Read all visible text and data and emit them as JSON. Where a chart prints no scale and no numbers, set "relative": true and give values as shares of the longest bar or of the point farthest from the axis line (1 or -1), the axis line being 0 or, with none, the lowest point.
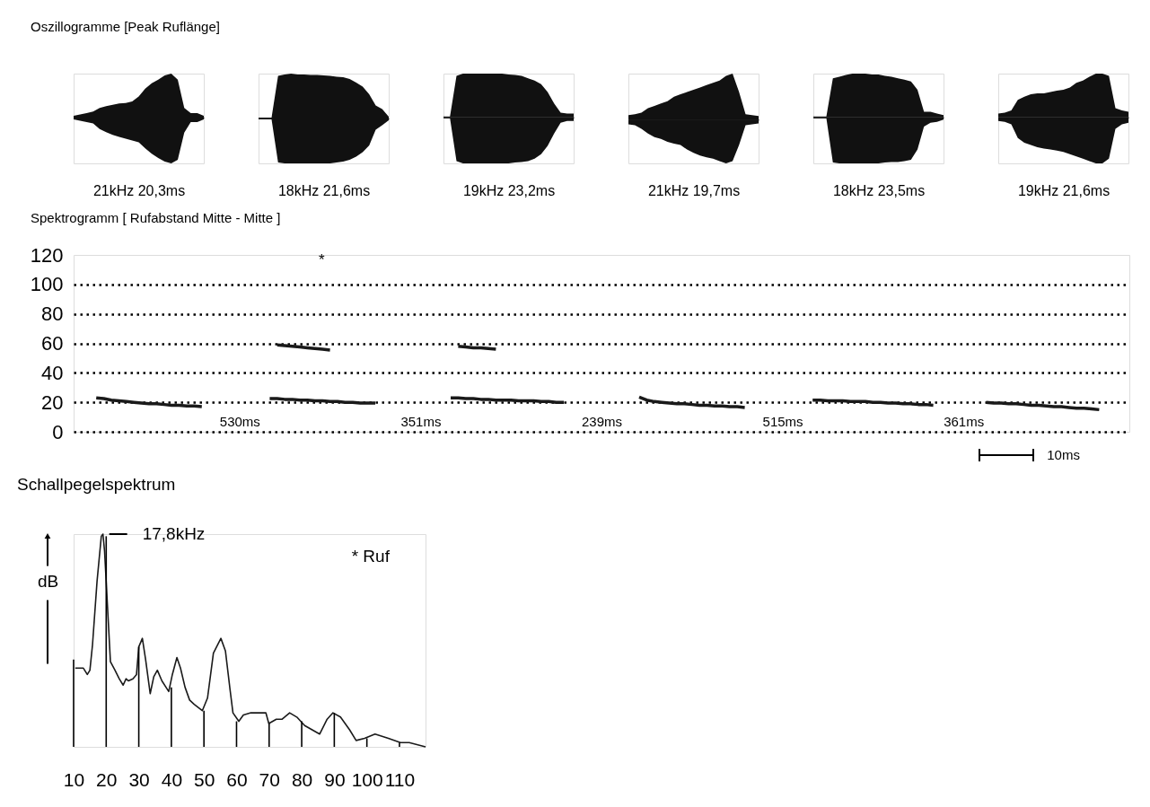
{
  "chart_data": [
    {
      "type": "area",
      "relative": true,
      "title": "Oszillogramme [Peak Ruflänge]",
      "xlabel": "21kHz 20,3ms",
      "categories": [
        null,
        null,
        null,
        null,
        null,
        null,
        null,
        null,
        null,
        null,
        null,
        null,
        null,
        null,
        null,
        null,
        null,
        null,
        null,
        null,
        null
      ],
      "series": [
        {
          "color": "#111111",
          "values": [
            0.04,
            0.07,
            0.1,
            0.13,
            0.21,
            0.25,
            0.28,
            0.31,
            0.32,
            0.35,
            0.46,
            0.63,
            0.75,
            0.83,
            0.92,
            0.96,
            0.83,
            0.21,
            0.1,
            0.1,
            0.04
          ]
        },
        {
          "color": "#111111",
          "values": [
            -0.04,
            -0.07,
            -0.1,
            -0.13,
            -0.25,
            -0.32,
            -0.38,
            -0.42,
            -0.46,
            -0.5,
            -0.54,
            -0.67,
            -0.79,
            -0.88,
            -0.96,
            -1,
            -0.92,
            -0.33,
            -0.1,
            -0.1,
            -0.04
          ]
        }
      ]
    },
    {
      "type": "area",
      "relative": true,
      "xlabel": "18kHz 21,6ms",
      "categories": [
        null,
        null,
        null,
        null,
        null,
        null,
        null,
        null,
        null,
        null,
        null,
        null,
        null,
        null,
        null,
        null,
        null,
        null,
        null,
        null,
        null
      ],
      "series": [
        {
          "color": "#111111",
          "values": [
            0.02,
            0.02,
            0.02,
            0.95,
            0.98,
            1,
            0.98,
            0.98,
            0.97,
            0.97,
            0.96,
            0.95,
            0.93,
            0.92,
            0.88,
            0.8,
            0.71,
            0.54,
            0.29,
            0.21,
            0.04
          ]
        },
        {
          "color": "#111111",
          "values": [
            -0.02,
            -0.02,
            -0.02,
            -0.98,
            -1,
            -1,
            -1,
            -1,
            -1,
            -1,
            -1,
            -1,
            -0.98,
            -0.96,
            -0.92,
            -0.85,
            -0.75,
            -0.6,
            -0.25,
            -0.15,
            -0.04
          ]
        }
      ]
    },
    {
      "type": "area",
      "relative": true,
      "xlabel": "19kHz 23,2ms",
      "categories": [
        null,
        null,
        null,
        null,
        null,
        null,
        null,
        null,
        null,
        null,
        null,
        null,
        null,
        null,
        null,
        null,
        null,
        null,
        null,
        null,
        null
      ],
      "series": [
        {
          "color": "#111111",
          "values": [
            0.02,
            0.02,
            0.9,
            0.95,
            0.95,
            0.95,
            0.95,
            0.95,
            0.95,
            0.95,
            0.93,
            0.92,
            0.9,
            0.85,
            0.8,
            0.72,
            0.55,
            0.3,
            0.1,
            0.08,
            0.08
          ]
        },
        {
          "color": "#111111",
          "values": [
            -0.02,
            -0.02,
            -0.95,
            -1,
            -1,
            -1,
            -1,
            -1,
            -1,
            -1,
            -1,
            -0.98,
            -0.97,
            -0.95,
            -0.9,
            -0.8,
            -0.62,
            -0.35,
            -0.12,
            -0.08,
            -0.08
          ]
        }
      ]
    },
    {
      "type": "area",
      "relative": true,
      "xlabel": "21kHz 19,7ms",
      "categories": [
        null,
        null,
        null,
        null,
        null,
        null,
        null,
        null,
        null,
        null,
        null,
        null,
        null,
        null,
        null,
        null,
        null,
        null,
        null,
        null,
        null
      ],
      "series": [
        {
          "color": "#111111",
          "values": [
            0.1,
            0.12,
            0.15,
            0.25,
            0.3,
            0.35,
            0.4,
            0.5,
            0.55,
            0.6,
            0.65,
            0.7,
            0.75,
            0.8,
            0.85,
            0.95,
            1,
            0.6,
            0.12,
            0.1,
            0.08
          ]
        },
        {
          "color": "#111111",
          "values": [
            -0.1,
            -0.12,
            -0.2,
            -0.3,
            -0.38,
            -0.42,
            -0.48,
            -0.52,
            -0.55,
            -0.65,
            -0.72,
            -0.78,
            -0.82,
            -0.85,
            -0.9,
            -0.95,
            -0.9,
            -0.55,
            -0.12,
            -0.1,
            -0.08
          ]
        }
      ]
    },
    {
      "type": "area",
      "relative": true,
      "xlabel": "18kHz 23,5ms",
      "categories": [
        null,
        null,
        null,
        null,
        null,
        null,
        null,
        null,
        null,
        null,
        null,
        null,
        null,
        null,
        null,
        null,
        null,
        null,
        null,
        null,
        null
      ],
      "series": [
        {
          "color": "#111111",
          "values": [
            0.02,
            0.02,
            0.02,
            0.85,
            0.88,
            0.92,
            0.95,
            0.95,
            0.95,
            0.93,
            0.93,
            0.9,
            0.88,
            0.85,
            0.82,
            0.78,
            0.6,
            0.12,
            0.12,
            0.08,
            0.05
          ]
        },
        {
          "color": "#111111",
          "values": [
            -0.02,
            -0.02,
            -0.02,
            -0.98,
            -1,
            -1,
            -1,
            -1,
            -1,
            -1,
            -1,
            -0.98,
            -0.97,
            -0.97,
            -0.95,
            -0.92,
            -0.7,
            -0.2,
            -0.12,
            -0.1,
            -0.05
          ]
        }
      ]
    },
    {
      "type": "area",
      "relative": true,
      "xlabel": "19kHz 21,6ms",
      "categories": [
        null,
        null,
        null,
        null,
        null,
        null,
        null,
        null,
        null,
        null,
        null,
        null,
        null,
        null,
        null,
        null,
        null,
        null,
        null,
        null,
        null
      ],
      "series": [
        {
          "color": "#111111",
          "values": [
            0.08,
            0.1,
            0.15,
            0.38,
            0.45,
            0.5,
            0.52,
            0.52,
            0.55,
            0.58,
            0.6,
            0.65,
            0.75,
            0.8,
            0.88,
            0.95,
            0.95,
            0.9,
            0.2,
            0.15,
            0.12
          ]
        },
        {
          "color": "#111111",
          "values": [
            -0.08,
            -0.1,
            -0.15,
            -0.45,
            -0.55,
            -0.6,
            -0.65,
            -0.68,
            -0.7,
            -0.72,
            -0.75,
            -0.8,
            -0.85,
            -0.9,
            -0.95,
            -1,
            -1,
            -0.9,
            -0.25,
            -0.15,
            -0.12
          ]
        }
      ]
    },
    {
      "type": "line",
      "title": "Spektrogramm [ Rufabstand Mitte - Mitte ]",
      "xlabel": "10ms",
      "ylim": [
        0,
        120
      ],
      "yticks": [
        0,
        20,
        40,
        60,
        80,
        100,
        120
      ],
      "grid": "y",
      "annotations": [
        "*"
      ],
      "categories": [
        null,
        null,
        null,
        null,
        null,
        null,
        null,
        null,
        null,
        null,
        null,
        null,
        null,
        null,
        null,
        null,
        null,
        null,
        null,
        null,
        null,
        null,
        "530ms",
        null,
        null,
        null,
        null,
        null,
        null,
        null,
        null,
        null,
        null,
        null,
        null,
        null,
        null,
        null,
        null,
        null,
        null,
        null,
        null,
        null,
        null,
        null,
        "351ms",
        null,
        null,
        null,
        null,
        null,
        null,
        null,
        null,
        null,
        null,
        null,
        null,
        null,
        null,
        null,
        null,
        null,
        null,
        null,
        null,
        null,
        null,
        null,
        "239ms",
        null,
        null,
        null,
        null,
        null,
        null,
        null,
        null,
        null,
        null,
        null,
        null,
        null,
        null,
        null,
        null,
        null,
        null,
        null,
        null,
        null,
        null,
        null,
        "515ms",
        null,
        null,
        null,
        null,
        null,
        null,
        null,
        null,
        null,
        null,
        null,
        null,
        null,
        null,
        null,
        null,
        null,
        null,
        null,
        null,
        null,
        null,
        null,
        "361ms",
        null,
        null,
        null,
        null,
        null,
        null,
        null,
        null,
        null,
        null,
        null,
        null,
        null,
        null,
        null,
        null,
        null,
        null,
        null,
        null,
        null,
        null
      ],
      "series": [
        {
          "color": "#1a1a1a",
          "values": [
            null,
            null,
            null,
            23,
            22.5,
            21.5,
            21,
            20.5,
            20,
            19.5,
            19,
            19,
            18.5,
            18,
            18,
            17.5,
            17.5,
            17,
            null,
            null,
            null,
            null,
            null,
            null,
            null,
            null,
            null,
            null,
            null,
            null,
            null,
            null,
            null,
            null,
            null,
            null,
            null,
            null,
            null,
            null,
            null,
            null,
            null,
            null,
            null,
            null,
            null,
            null,
            null,
            null,
            null,
            null,
            null,
            null,
            null,
            null,
            null,
            null,
            null,
            null,
            null,
            null,
            null,
            null,
            null,
            null,
            null,
            null,
            null,
            null,
            null,
            null,
            null,
            null,
            null,
            null,
            null,
            null,
            null,
            null,
            null,
            null,
            null,
            null,
            null,
            null,
            null,
            null,
            null,
            null,
            null,
            null,
            null,
            null,
            null,
            null,
            null,
            null,
            null,
            null,
            null,
            null,
            null,
            null,
            null,
            null,
            null,
            null,
            null,
            null,
            null,
            null,
            null,
            null,
            null,
            null,
            null,
            null,
            null,
            null,
            null,
            null,
            null,
            null,
            null,
            null,
            null,
            null,
            null,
            null,
            null,
            null,
            null,
            null,
            null,
            null,
            null,
            null,
            null,
            null,
            null
          ]
        },
        {
          "color": "#1a1a1a",
          "values": [
            null,
            null,
            null,
            null,
            null,
            null,
            null,
            null,
            null,
            null,
            null,
            null,
            null,
            null,
            null,
            null,
            null,
            null,
            null,
            null,
            null,
            null,
            null,
            null,
            null,
            null,
            22.5,
            22.5,
            22,
            22,
            21.5,
            21.5,
            21,
            21,
            20.5,
            20.5,
            20,
            20,
            19.5,
            19.5,
            19.5,
            null,
            null,
            null,
            null,
            null,
            null,
            null,
            null,
            null,
            null,
            null,
            null,
            null,
            null,
            null,
            null,
            null,
            null,
            null,
            null,
            null,
            null,
            null,
            null,
            null,
            null,
            null,
            null,
            null,
            null,
            null,
            null,
            null,
            null,
            null,
            null,
            null,
            null,
            null,
            null,
            null,
            null,
            null,
            null,
            null,
            null,
            null,
            null,
            null,
            null,
            null,
            null,
            null,
            null,
            null,
            null,
            null,
            null,
            null,
            null,
            null,
            null,
            null,
            null,
            null,
            null,
            null,
            null,
            null,
            null,
            null,
            null,
            null,
            null,
            null,
            null,
            null,
            null,
            null,
            null,
            null,
            null,
            null,
            null,
            null,
            null,
            null,
            null,
            null,
            null,
            null,
            null,
            null,
            null,
            null,
            null,
            null,
            null,
            null,
            null
          ]
        },
        {
          "color": "#1a1a1a",
          "values": [
            null,
            null,
            null,
            null,
            null,
            null,
            null,
            null,
            null,
            null,
            null,
            null,
            null,
            null,
            null,
            null,
            null,
            null,
            null,
            null,
            null,
            null,
            null,
            null,
            null,
            null,
            null,
            59,
            58.5,
            58,
            57.5,
            57,
            56.5,
            56,
            55.5,
            null,
            null,
            null,
            null,
            null,
            null,
            null,
            null,
            null,
            null,
            null,
            null,
            null,
            null,
            null,
            null,
            null,
            null,
            null,
            null,
            null,
            null,
            null,
            null,
            null,
            null,
            null,
            null,
            null,
            null,
            null,
            null,
            null,
            null,
            null,
            null,
            null,
            null,
            null,
            null,
            null,
            null,
            null,
            null,
            null,
            null,
            null,
            null,
            null,
            null,
            null,
            null,
            null,
            null,
            null,
            null,
            null,
            null,
            null,
            null,
            null,
            null,
            null,
            null,
            null,
            null,
            null,
            null,
            null,
            null,
            null,
            null,
            null,
            null,
            null,
            null,
            null,
            null,
            null,
            null,
            null,
            null,
            null,
            null,
            null,
            null,
            null,
            null,
            null,
            null,
            null,
            null,
            null,
            null,
            null,
            null,
            null,
            null,
            null,
            null,
            null,
            null,
            null,
            null,
            null,
            null
          ]
        },
        {
          "color": "#1a1a1a",
          "values": [
            null,
            null,
            null,
            null,
            null,
            null,
            null,
            null,
            null,
            null,
            null,
            null,
            null,
            null,
            null,
            null,
            null,
            null,
            null,
            null,
            null,
            null,
            null,
            null,
            null,
            null,
            null,
            null,
            null,
            null,
            null,
            null,
            null,
            null,
            null,
            null,
            null,
            null,
            null,
            null,
            null,
            null,
            null,
            null,
            null,
            null,
            null,
            null,
            null,
            null,
            23,
            23,
            22.5,
            22.5,
            22,
            22,
            21.5,
            21.5,
            21.5,
            21,
            21,
            21,
            20.5,
            20.5,
            20,
            20,
            null,
            null,
            null,
            null,
            null,
            null,
            null,
            null,
            null,
            null,
            null,
            null,
            null,
            null,
            null,
            null,
            null,
            null,
            null,
            null,
            null,
            null,
            null,
            null,
            null,
            null,
            null,
            null,
            null,
            null,
            null,
            null,
            null,
            null,
            null,
            null,
            null,
            null,
            null,
            null,
            null,
            null,
            null,
            null,
            null,
            null,
            null,
            null,
            null,
            null,
            null,
            null,
            null,
            null,
            null,
            null,
            null,
            null,
            null,
            null,
            null,
            null,
            null,
            null,
            null,
            null,
            null,
            null,
            null,
            null,
            null,
            null,
            null,
            null,
            null
          ]
        },
        {
          "color": "#1a1a1a",
          "values": [
            null,
            null,
            null,
            null,
            null,
            null,
            null,
            null,
            null,
            null,
            null,
            null,
            null,
            null,
            null,
            null,
            null,
            null,
            null,
            null,
            null,
            null,
            null,
            null,
            null,
            null,
            null,
            null,
            null,
            null,
            null,
            null,
            null,
            null,
            null,
            null,
            null,
            null,
            null,
            null,
            null,
            null,
            null,
            null,
            null,
            null,
            null,
            null,
            null,
            null,
            null,
            58,
            57.5,
            57,
            57,
            56.5,
            56,
            null,
            null,
            null,
            null,
            null,
            null,
            null,
            null,
            null,
            null,
            null,
            null,
            null,
            null,
            null,
            null,
            null,
            null,
            null,
            null,
            null,
            null,
            null,
            null,
            null,
            null,
            null,
            null,
            null,
            null,
            null,
            null,
            null,
            null,
            null,
            null,
            null,
            null,
            null,
            null,
            null,
            null,
            null,
            null,
            null,
            null,
            null,
            null,
            null,
            null,
            null,
            null,
            null,
            null,
            null,
            null,
            null,
            null,
            null,
            null,
            null,
            null,
            null,
            null,
            null,
            null,
            null,
            null,
            null,
            null,
            null,
            null,
            null,
            null,
            null,
            null,
            null,
            null,
            null,
            null,
            null,
            null,
            null,
            null
          ]
        },
        {
          "color": "#1a1a1a",
          "values": [
            null,
            null,
            null,
            null,
            null,
            null,
            null,
            null,
            null,
            null,
            null,
            null,
            null,
            null,
            null,
            null,
            null,
            null,
            null,
            null,
            null,
            null,
            null,
            null,
            null,
            null,
            null,
            null,
            null,
            null,
            null,
            null,
            null,
            null,
            null,
            null,
            null,
            null,
            null,
            null,
            null,
            null,
            null,
            null,
            null,
            null,
            null,
            null,
            null,
            null,
            null,
            null,
            null,
            null,
            null,
            null,
            null,
            null,
            null,
            null,
            null,
            null,
            null,
            null,
            null,
            null,
            null,
            null,
            null,
            null,
            null,
            null,
            null,
            null,
            null,
            23.5,
            21.5,
            20.5,
            20,
            19.5,
            19,
            19,
            18.5,
            18,
            18,
            17.5,
            17.5,
            17,
            17,
            16.5,
            null,
            null,
            null,
            null,
            null,
            null,
            null,
            null,
            null,
            null,
            null,
            null,
            null,
            null,
            null,
            null,
            null,
            null,
            null,
            null,
            null,
            null,
            null,
            null,
            null,
            null,
            null,
            null,
            null,
            null,
            null,
            null,
            null,
            null,
            null,
            null,
            null,
            null,
            null,
            null,
            null,
            null,
            null,
            null,
            null,
            null,
            null,
            null,
            null,
            null,
            null
          ]
        },
        {
          "color": "#1a1a1a",
          "values": [
            null,
            null,
            null,
            null,
            null,
            null,
            null,
            null,
            null,
            null,
            null,
            null,
            null,
            null,
            null,
            null,
            null,
            null,
            null,
            null,
            null,
            null,
            null,
            null,
            null,
            null,
            null,
            null,
            null,
            null,
            null,
            null,
            null,
            null,
            null,
            null,
            null,
            null,
            null,
            null,
            null,
            null,
            null,
            null,
            null,
            null,
            null,
            null,
            null,
            null,
            null,
            null,
            null,
            null,
            null,
            null,
            null,
            null,
            null,
            null,
            null,
            null,
            null,
            null,
            null,
            null,
            null,
            null,
            null,
            null,
            null,
            null,
            null,
            null,
            null,
            null,
            null,
            null,
            null,
            null,
            null,
            null,
            null,
            null,
            null,
            null,
            null,
            null,
            null,
            null,
            null,
            null,
            null,
            null,
            null,
            null,
            null,
            null,
            21.5,
            21.5,
            21,
            21,
            21,
            20.5,
            20.5,
            20.5,
            20,
            20,
            19.5,
            19.5,
            19,
            19,
            18.5,
            18.5,
            18,
            null,
            null,
            null,
            null,
            null,
            null,
            null,
            null,
            null,
            null,
            null,
            null,
            null,
            null,
            null,
            null,
            null,
            null,
            null,
            null,
            null,
            null,
            null,
            null,
            null,
            null
          ]
        },
        {
          "color": "#1a1a1a",
          "values": [
            null,
            null,
            null,
            null,
            null,
            null,
            null,
            null,
            null,
            null,
            null,
            null,
            null,
            null,
            null,
            null,
            null,
            null,
            null,
            null,
            null,
            null,
            null,
            null,
            null,
            null,
            null,
            null,
            null,
            null,
            null,
            null,
            null,
            null,
            null,
            null,
            null,
            null,
            null,
            null,
            null,
            null,
            null,
            null,
            null,
            null,
            null,
            null,
            null,
            null,
            null,
            null,
            null,
            null,
            null,
            null,
            null,
            null,
            null,
            null,
            null,
            null,
            null,
            null,
            null,
            null,
            null,
            null,
            null,
            null,
            null,
            null,
            null,
            null,
            null,
            null,
            null,
            null,
            null,
            null,
            null,
            null,
            null,
            null,
            null,
            null,
            null,
            null,
            null,
            null,
            null,
            null,
            null,
            null,
            null,
            null,
            null,
            null,
            null,
            null,
            null,
            null,
            null,
            null,
            null,
            null,
            null,
            null,
            null,
            null,
            null,
            null,
            null,
            null,
            null,
            null,
            null,
            null,
            null,
            null,
            null,
            20,
            19.5,
            19.5,
            19,
            19,
            18.5,
            18,
            18,
            17.5,
            17,
            17,
            16.5,
            16,
            16,
            15.5,
            15,
            null,
            null,
            null,
            null
          ]
        }
      ]
    },
    {
      "type": "line",
      "relative": true,
      "title": "Schallpegelspektrum",
      "ylabel": "dB",
      "xlim": [
        10,
        118
      ],
      "xticks": [
        10,
        20,
        30,
        40,
        50,
        60,
        70,
        80,
        90,
        100,
        110
      ],
      "x": [
        10.5,
        13,
        14.2,
        15,
        15.8,
        17.2,
        18.5,
        19,
        19.5,
        20.4,
        21.3,
        22.7,
        24,
        25.2,
        26.1,
        26.8,
        28.2,
        29.3,
        30,
        31.1,
        32.1,
        33.5,
        34.6,
        35.7,
        37.1,
        39.2,
        40.3,
        41.7,
        42.8,
        44.2,
        45.6,
        47,
        49.5,
        51.1,
        52.9,
        55.2,
        56.6,
        58,
        58.9,
        60.7,
        62.1,
        64.4,
        67.2,
        69,
        69.9,
        72.2,
        74,
        76.3,
        78.5,
        80.9,
        83.2,
        85.5,
        87.8,
        89.6,
        91.9,
        94.7,
        96.7,
        99.3,
        102.5,
        106.6,
        110.3,
        113,
        118
      ],
      "series": [
        {
          "color": "#1a1a1a",
          "values": [
            0.37,
            0.37,
            0.34,
            0.36,
            0.48,
            0.78,
            0.99,
            1,
            0.92,
            0.66,
            0.4,
            0.36,
            0.32,
            0.29,
            0.32,
            0.31,
            0.32,
            0.34,
            0.47,
            0.51,
            0.41,
            0.25,
            0.33,
            0.36,
            0.31,
            0.26,
            0.34,
            0.42,
            0.37,
            0.28,
            0.22,
            0.2,
            0.17,
            0.23,
            0.44,
            0.51,
            0.45,
            0.27,
            0.16,
            0.12,
            0.15,
            0.16,
            0.16,
            0.16,
            0.11,
            0.13,
            0.13,
            0.16,
            0.14,
            0.1,
            0.08,
            0.06,
            0.13,
            0.16,
            0.14,
            0.08,
            0.03,
            0.04,
            0.06,
            0.04,
            0.02,
            0.02,
            0
          ]
        },
        {
          "type": "bar",
          "color": "#000000",
          "x": [
            10,
            20,
            30,
            40,
            50,
            60,
            70,
            80,
            90,
            100,
            110
          ],
          "values": [
            0.41,
            0.99,
            0.47,
            0.28,
            0.17,
            0.12,
            0.11,
            0.12,
            0.16,
            0.04,
            0.02
          ]
        }
      ],
      "annotations": [
        {
          "text": "17,8kHz",
          "x": 19,
          "y": 1
        },
        "* Ruf"
      ]
    }
  ]
}
